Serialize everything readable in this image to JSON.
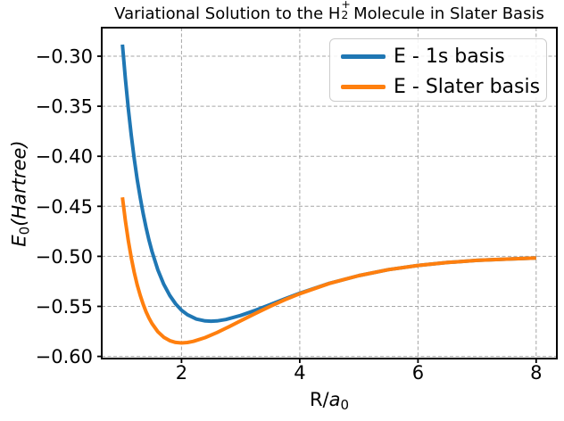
{
  "figure": {
    "background": "#ffffff",
    "spine_color": "#000000",
    "grid_color": "#a6a6a6"
  },
  "title": {
    "prefix": "Variational Solution to the H",
    "formula_sub": "2",
    "formula_sup": "+",
    "suffix": " Molecule in Slater Basis"
  },
  "xlabel": {
    "base": "R/",
    "var": "a",
    "sub": "0"
  },
  "ylabel": {
    "var": "E",
    "sub": "0",
    "rest": "(Hartree)"
  },
  "xtick_labels": [
    "2",
    "4",
    "6",
    "8"
  ],
  "ytick_labels": [
    "−0.30",
    "−0.35",
    "−0.40",
    "−0.45",
    "−0.50",
    "−0.55",
    "−0.60"
  ],
  "legend": {
    "entries": [
      "E - 1s basis",
      "E - Slater basis"
    ]
  },
  "chart_data": {
    "type": "line",
    "title": "Variational Solution to the H2+ Molecule in Slater Basis",
    "xlabel": "R/a0",
    "ylabel": "E0(Hartree)",
    "xlim": [
      0.65,
      8.35
    ],
    "ylim": [
      -0.6021,
      -0.2715
    ],
    "xticks": [
      2,
      4,
      6,
      8
    ],
    "yticks": [
      -0.3,
      -0.35,
      -0.4,
      -0.45,
      -0.5,
      -0.55,
      -0.6
    ],
    "grid": true,
    "grid_style": "dashed",
    "legend_position": "upper right",
    "series": [
      {
        "name": "E - 1s basis",
        "color": "#1f77b4",
        "points": [
          [
            1.0,
            -0.2884
          ],
          [
            1.05,
            -0.3226
          ],
          [
            1.1,
            -0.3527
          ],
          [
            1.15,
            -0.3791
          ],
          [
            1.2,
            -0.4024
          ],
          [
            1.25,
            -0.423
          ],
          [
            1.3,
            -0.4411
          ],
          [
            1.35,
            -0.4571
          ],
          [
            1.4,
            -0.4713
          ],
          [
            1.45,
            -0.4839
          ],
          [
            1.5,
            -0.495
          ],
          [
            1.6,
            -0.5135
          ],
          [
            1.7,
            -0.5279
          ],
          [
            1.8,
            -0.539
          ],
          [
            1.9,
            -0.5475
          ],
          [
            2.0,
            -0.5538
          ],
          [
            2.1,
            -0.5583
          ],
          [
            2.25,
            -0.5626
          ],
          [
            2.4,
            -0.5645
          ],
          [
            2.5,
            -0.5648
          ],
          [
            2.6,
            -0.5645
          ],
          [
            2.75,
            -0.5631
          ],
          [
            3.0,
            -0.5591
          ],
          [
            3.25,
            -0.5539
          ],
          [
            3.5,
            -0.5482
          ],
          [
            3.75,
            -0.5424
          ],
          [
            4.0,
            -0.5369
          ],
          [
            4.5,
            -0.527
          ],
          [
            5.0,
            -0.5192
          ],
          [
            5.5,
            -0.5133
          ],
          [
            6.0,
            -0.5091
          ],
          [
            6.5,
            -0.5061
          ],
          [
            7.0,
            -0.504
          ],
          [
            7.5,
            -0.5027
          ],
          [
            8.0,
            -0.5017
          ]
        ]
      },
      {
        "name": "E - Slater basis",
        "color": "#ff7f0e",
        "points": [
          [
            1.0,
            -0.441
          ],
          [
            1.05,
            -0.4644
          ],
          [
            1.1,
            -0.4844
          ],
          [
            1.15,
            -0.5014
          ],
          [
            1.2,
            -0.5159
          ],
          [
            1.25,
            -0.5283
          ],
          [
            1.3,
            -0.5388
          ],
          [
            1.35,
            -0.5477
          ],
          [
            1.4,
            -0.5554
          ],
          [
            1.45,
            -0.5617
          ],
          [
            1.5,
            -0.5671
          ],
          [
            1.6,
            -0.5753
          ],
          [
            1.7,
            -0.5808
          ],
          [
            1.8,
            -0.5842
          ],
          [
            1.9,
            -0.586
          ],
          [
            2.0,
            -0.5865
          ],
          [
            2.1,
            -0.5861
          ],
          [
            2.2,
            -0.5849
          ],
          [
            2.4,
            -0.5812
          ],
          [
            2.6,
            -0.5761
          ],
          [
            2.8,
            -0.5704
          ],
          [
            3.0,
            -0.5644
          ],
          [
            3.25,
            -0.557
          ],
          [
            3.5,
            -0.5499
          ],
          [
            3.75,
            -0.5433
          ],
          [
            4.0,
            -0.5373
          ],
          [
            4.5,
            -0.5271
          ],
          [
            5.0,
            -0.5192
          ],
          [
            5.5,
            -0.5133
          ],
          [
            6.0,
            -0.5091
          ],
          [
            6.5,
            -0.5061
          ],
          [
            7.0,
            -0.504
          ],
          [
            7.5,
            -0.5027
          ],
          [
            8.0,
            -0.5017
          ]
        ]
      }
    ]
  }
}
